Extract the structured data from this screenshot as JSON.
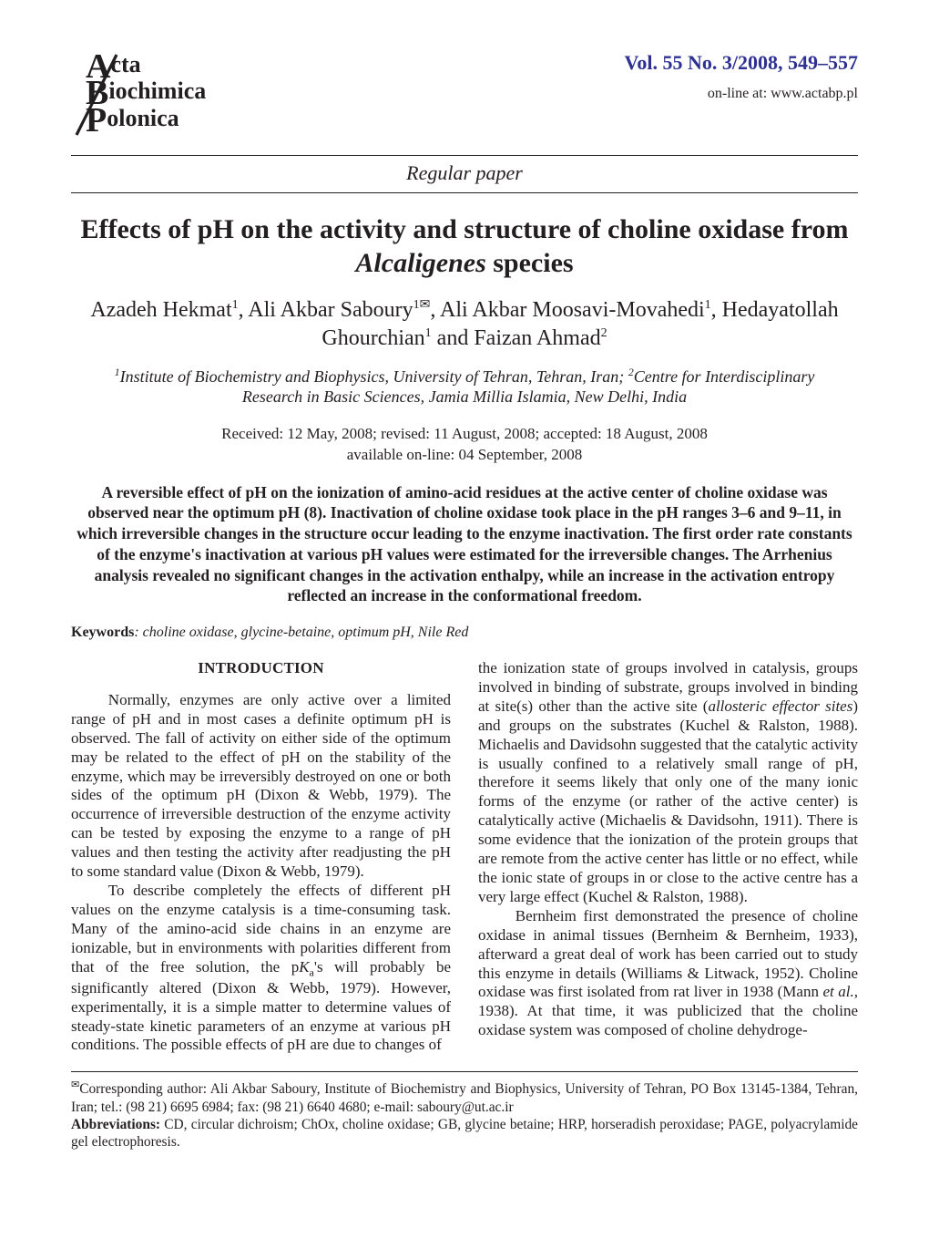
{
  "meta": {
    "volume_line": "Vol. 55 No. 3/2008, 549–557",
    "online_line": "on-line at: www.actabp.pl",
    "section_kind": "Regular paper"
  },
  "logo": {
    "line1": "cta",
    "line2": "iochimica",
    "line3": "olonica",
    "stroke_color": "#231f20",
    "stroke_width": 3
  },
  "title": {
    "prefix": "Effects of pH on the activity and structure of choline oxidase from ",
    "species_italic": "Alcaligenes",
    "suffix": " species"
  },
  "authors_html": "Azadeh Hekmat<sup>1</sup>, Ali Akbar Saboury<sup>1✉</sup>, Ali Akbar Moosavi-Movahedi<sup>1</sup>, Hedayatollah Ghourchian<sup>1</sup> and Faizan Ahmad<sup>2</sup>",
  "affiliations_html": "<sup>1</sup>Institute of Biochemistry and Biophysics, University of Tehran, Tehran, Iran; <sup>2</sup>Centre for Interdisciplinary Research in Basic Sciences, Jamia Millia Islamia, New Delhi, India",
  "received_line1": "Received: 12 May, 2008; revised: 11 August, 2008; accepted: 18 August, 2008",
  "received_line2": "available on-line: 04 September, 2008",
  "abstract": "A reversible effect of pH on the ionization of amino-acid residues at the active center of choline oxidase was observed near the optimum pH (8). Inactivation of choline oxidase took place in the pH ranges 3–6 and 9–11, in which irreversible changes in the structure occur leading to the enzyme inactivation. The first order rate constants of the enzyme's inactivation at various pH values were estimated for the irreversible changes. The Arrhenius analysis revealed no significant changes in the activation enthalpy, while an increase in the activation entropy reflected an increase in the conformational freedom.",
  "keywords_label": "Keywords",
  "keywords_value": ": choline oxidase, glycine-betaine, optimum pH, Nile Red",
  "section_heading": "INTRODUCTION",
  "left_p1": "Normally, enzymes are only active over a limited range of pH and in most cases a definite optimum pH is observed. The fall of activity on either side of the optimum may be related to the effect of pH on the stability of the enzyme, which may be irreversibly destroyed on one or both sides of the optimum pH (Dixon & Webb, 1979). The occurrence of irreversible destruction of the enzyme activity can be tested by exposing the enzyme to a range of pH values and then testing the activity after readjusting the pH to some standard value (Dixon & Webb, 1979).",
  "left_p2_html": "To describe completely the effects of different pH values on the enzyme catalysis is a time-consuming task. Many of the amino-acid side chains in an enzyme are ionizable, but in environments with polarities different from that of the free solution, the p<span class=\"ital\">K</span><span class=\"sub\">a</span>'s will probably be significantly altered (Dixon & Webb, 1979). However, experimentally, it is a simple matter to determine values of steady-state kinetic parameters of an enzyme at various pH conditions. The possible effects of pH are due to changes of",
  "right_p1_html": "the ionization state of groups involved in catalysis, groups involved in binding of substrate, groups involved in binding at site(s) other than the active site (<span class=\"ital\">allosteric effector sites</span>) and groups on the substrates (Kuchel & Ralston, 1988). Michaelis and Davidsohn suggested that the catalytic activity is usually confined to a relatively small range of pH, therefore it seems likely that only one of the many ionic forms of the enzyme (or rather of the active center) is catalytically active (Michaelis & Davidsohn, 1911). There is some evidence that the ionization of the protein groups that are remote from the active center has little or no effect, while the ionic state of groups in or close to the active centre has a very large effect (Kuchel & Ralston, 1988).",
  "right_p2_html": "Bernheim first demonstrated the presence of choline oxidase in animal tissues (Bernheim & Bernheim, 1933), afterward a great deal of work has been carried out to study this enzyme in details (Williams & Litwack, 1952). Choline oxidase was first isolated from rat liver in 1938 (Mann <span class=\"ital\">et al.</span>, 1938). At that time, it was publicized that the choline oxidase system was composed of choline dehydroge-",
  "footnote_corr_html": "<sup>✉</sup>Corresponding author: Ali Akbar Saboury, Institute of Biochemistry and Biophysics, University of Tehran, PO Box 13145-1384, Tehran, Iran; tel.: (98 21) 6695 6984; fax: (98 21) 6640 4680; e-mail: saboury@ut.ac.ir",
  "footnote_abbr_label": "Abbreviations: ",
  "footnote_abbr_text": "CD, circular dichroism; ChOx, choline oxidase; GB, glycine betaine; HRP, horseradish peroxidase; PAGE, polyacrylamide gel electrophoresis.",
  "colors": {
    "volume": "#2e3192",
    "text": "#231f20",
    "rule": "#231f20",
    "background": "#ffffff"
  },
  "typography": {
    "title_pt": 30,
    "authors_pt": 24,
    "body_pt": 17,
    "abstract_pt": 17.5,
    "footnote_pt": 15.4
  }
}
